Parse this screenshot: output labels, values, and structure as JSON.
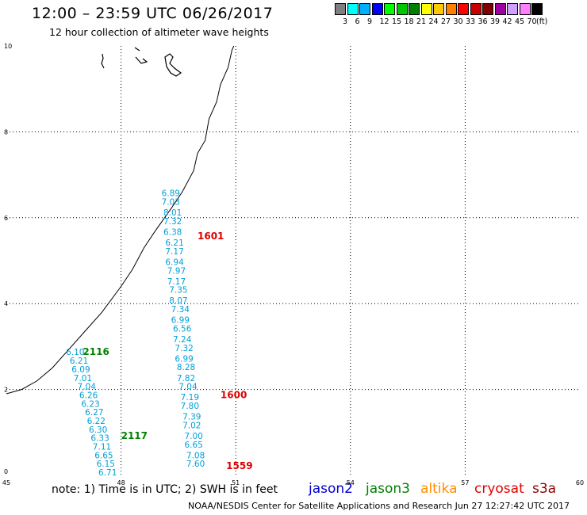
{
  "title": "12:00 – 23:59 UTC 06/26/2017",
  "subtitle": "12 hour collection of altimeter wave heights",
  "color_scale": {
    "colors": [
      "#808080",
      "#00ffff",
      "#00b0ff",
      "#0000ff",
      "#00ff00",
      "#00c800",
      "#008000",
      "#ffff00",
      "#ffc800",
      "#ff8000",
      "#ff0000",
      "#c80000",
      "#800000",
      "#a000a0",
      "#d0a0ff",
      "#ff80ff",
      "#000000"
    ],
    "labels": [
      "3",
      "6",
      "9",
      "12",
      "15",
      "18",
      "21",
      "24",
      "27",
      "30",
      "33",
      "36",
      "39",
      "42",
      "45",
      "70",
      "(ft)"
    ]
  },
  "axes": {
    "lon_range": [
      45,
      60
    ],
    "lat_range": [
      0,
      10
    ],
    "x_ticks": [
      "45",
      "48",
      "51",
      "54",
      "57",
      "60"
    ],
    "y_ticks": [
      "0",
      "2",
      "4",
      "6",
      "8",
      "10"
    ],
    "grid": "dotted"
  },
  "chart_data": {
    "type": "scatter",
    "coastline": [
      [
        45,
        1.9
      ],
      [
        45.4,
        2.0
      ],
      [
        45.8,
        2.2
      ],
      [
        46.2,
        2.5
      ],
      [
        46.6,
        2.9
      ],
      [
        47.0,
        3.3
      ],
      [
        47.5,
        3.8
      ],
      [
        48.0,
        4.4
      ],
      [
        48.3,
        4.8
      ],
      [
        48.6,
        5.3
      ],
      [
        48.9,
        5.7
      ],
      [
        49.3,
        6.2
      ],
      [
        49.6,
        6.6
      ],
      [
        49.9,
        7.1
      ],
      [
        50.0,
        7.5
      ],
      [
        50.2,
        7.8
      ],
      [
        50.3,
        8.3
      ],
      [
        50.5,
        8.7
      ],
      [
        50.6,
        9.1
      ],
      [
        50.8,
        9.5
      ],
      [
        50.9,
        9.9
      ],
      [
        50.95,
        10
      ]
    ],
    "track_series": "jason2",
    "track_color": "#00a0d8",
    "tracks": [
      {
        "id": "2116",
        "label_color": "#008000",
        "label_lon": 47.0,
        "label_lat": 2.8,
        "points": [
          {
            "lon": 46.8,
            "lat": 2.8,
            "v": "6.10"
          },
          {
            "lon": 46.9,
            "lat": 2.6,
            "v": "6.21"
          },
          {
            "lon": 46.95,
            "lat": 2.4,
            "v": "6.09"
          },
          {
            "lon": 47.0,
            "lat": 2.2,
            "v": "7.01"
          },
          {
            "lon": 47.1,
            "lat": 2.0,
            "v": "7.04"
          },
          {
            "lon": 47.15,
            "lat": 1.8,
            "v": "6.26"
          },
          {
            "lon": 47.2,
            "lat": 1.6,
            "v": "6.23"
          },
          {
            "lon": 47.3,
            "lat": 1.4,
            "v": "6.27"
          },
          {
            "lon": 47.35,
            "lat": 1.2,
            "v": "6.22"
          },
          {
            "lon": 47.4,
            "lat": 1.0,
            "v": "6.30"
          },
          {
            "lon": 47.45,
            "lat": 0.8,
            "v": "6.33"
          },
          {
            "lon": 47.5,
            "lat": 0.6,
            "v": "7.11"
          },
          {
            "lon": 47.55,
            "lat": 0.4,
            "v": "6.65"
          },
          {
            "lon": 47.6,
            "lat": 0.2,
            "v": "6.15"
          },
          {
            "lon": 47.65,
            "lat": 0.0,
            "v": "6.71"
          }
        ]
      },
      {
        "id": "2117",
        "label_color": "#008000",
        "label_lon": 48.0,
        "label_lat": 0.85,
        "points": []
      },
      {
        "id": "1601",
        "label_color": "#e00000",
        "label_lon": 50.0,
        "label_lat": 5.5,
        "points": [
          {
            "lon": 49.3,
            "lat": 6.5,
            "v": "6.89"
          },
          {
            "lon": 49.3,
            "lat": 6.3,
            "v": "7.03"
          },
          {
            "lon": 49.35,
            "lat": 6.05,
            "v": "8.01"
          },
          {
            "lon": 49.35,
            "lat": 5.85,
            "v": "7.32"
          },
          {
            "lon": 49.35,
            "lat": 5.6,
            "v": "6.38"
          },
          {
            "lon": 49.4,
            "lat": 5.35,
            "v": "6.21"
          },
          {
            "lon": 49.4,
            "lat": 5.15,
            "v": "7.17"
          },
          {
            "lon": 49.4,
            "lat": 4.9,
            "v": "6.94"
          },
          {
            "lon": 49.45,
            "lat": 4.7,
            "v": "7.97"
          },
          {
            "lon": 49.45,
            "lat": 4.45,
            "v": "7.17"
          },
          {
            "lon": 49.5,
            "lat": 4.25,
            "v": "7.35"
          },
          {
            "lon": 49.5,
            "lat": 4.0,
            "v": "8.07"
          },
          {
            "lon": 49.55,
            "lat": 3.8,
            "v": "7.34"
          },
          {
            "lon": 49.55,
            "lat": 3.55,
            "v": "6.99"
          },
          {
            "lon": 49.6,
            "lat": 3.35,
            "v": "6.56"
          },
          {
            "lon": 49.6,
            "lat": 3.1,
            "v": "7.24"
          },
          {
            "lon": 49.65,
            "lat": 2.9,
            "v": "7.32"
          },
          {
            "lon": 49.65,
            "lat": 2.65,
            "v": "6.99"
          },
          {
            "lon": 49.7,
            "lat": 2.45,
            "v": "8.28"
          }
        ]
      },
      {
        "id": "1600",
        "label_color": "#e00000",
        "label_lon": 50.6,
        "label_lat": 1.8,
        "points": [
          {
            "lon": 49.7,
            "lat": 2.2,
            "v": "7.82"
          },
          {
            "lon": 49.75,
            "lat": 2.0,
            "v": "7.04"
          },
          {
            "lon": 49.8,
            "lat": 1.75,
            "v": "7.19"
          },
          {
            "lon": 49.8,
            "lat": 1.55,
            "v": "7.80"
          },
          {
            "lon": 49.85,
            "lat": 1.3,
            "v": "7.39"
          },
          {
            "lon": 49.85,
            "lat": 1.1,
            "v": "7.02"
          },
          {
            "lon": 49.9,
            "lat": 0.85,
            "v": "7.00"
          },
          {
            "lon": 49.9,
            "lat": 0.65,
            "v": "6.65"
          },
          {
            "lon": 49.95,
            "lat": 0.4,
            "v": "7.08"
          },
          {
            "lon": 49.95,
            "lat": 0.2,
            "v": "7.60"
          }
        ]
      },
      {
        "id": "1559",
        "label_color": "#e00000",
        "label_lon": 50.75,
        "label_lat": 0.15,
        "points": []
      }
    ]
  },
  "note": "note:  1) Time is in UTC; 2) SWH is in feet",
  "legend": [
    {
      "name": "jason2",
      "color": "#0000d0"
    },
    {
      "name": "jason3",
      "color": "#008000"
    },
    {
      "name": "altika",
      "color": "#ff8c00"
    },
    {
      "name": "cryosat",
      "color": "#e00000"
    },
    {
      "name": "s3a",
      "color": "#8b0000"
    }
  ],
  "footer": "NOAA/NESDIS Center for Satellite Applications and Research     Jun 27 12:27:42 UTC 2017"
}
